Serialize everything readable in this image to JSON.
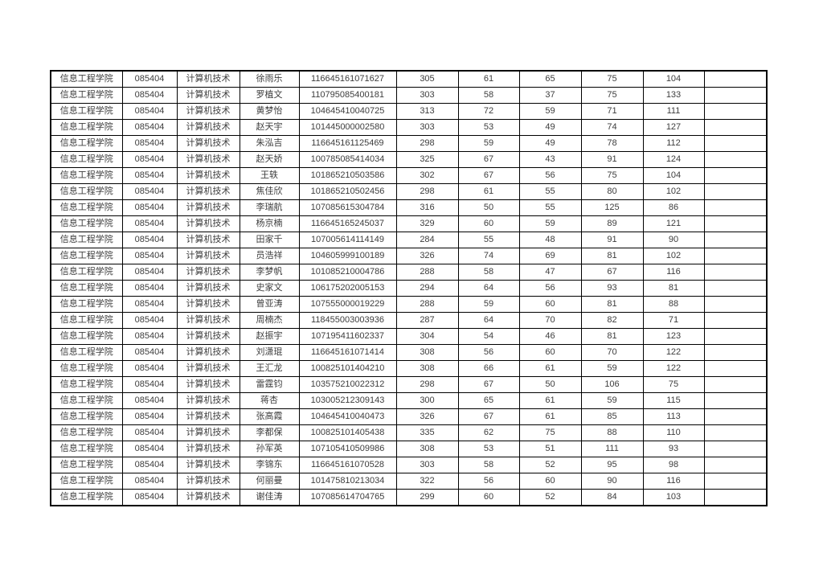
{
  "table": {
    "rows": [
      [
        "信息工程学院",
        "085404",
        "计算机技术",
        "徐雨乐",
        "116645161071627",
        "305",
        "61",
        "65",
        "75",
        "104",
        ""
      ],
      [
        "信息工程学院",
        "085404",
        "计算机技术",
        "罗植文",
        "110795085400181",
        "303",
        "58",
        "37",
        "75",
        "133",
        ""
      ],
      [
        "信息工程学院",
        "085404",
        "计算机技术",
        "黄梦怡",
        "104645410040725",
        "313",
        "72",
        "59",
        "71",
        "111",
        ""
      ],
      [
        "信息工程学院",
        "085404",
        "计算机技术",
        "赵天宇",
        "101445000002580",
        "303",
        "53",
        "49",
        "74",
        "127",
        ""
      ],
      [
        "信息工程学院",
        "085404",
        "计算机技术",
        "朱泓吉",
        "116645161125469",
        "298",
        "59",
        "49",
        "78",
        "112",
        ""
      ],
      [
        "信息工程学院",
        "085404",
        "计算机技术",
        "赵天娇",
        "100785085414034",
        "325",
        "67",
        "43",
        "91",
        "124",
        ""
      ],
      [
        "信息工程学院",
        "085404",
        "计算机技术",
        "王轶",
        "101865210503586",
        "302",
        "67",
        "56",
        "75",
        "104",
        ""
      ],
      [
        "信息工程学院",
        "085404",
        "计算机技术",
        "焦佳欣",
        "101865210502456",
        "298",
        "61",
        "55",
        "80",
        "102",
        ""
      ],
      [
        "信息工程学院",
        "085404",
        "计算机技术",
        "李瑞航",
        "107085615304784",
        "316",
        "50",
        "55",
        "125",
        "86",
        ""
      ],
      [
        "信息工程学院",
        "085404",
        "计算机技术",
        "杨京楠",
        "116645165245037",
        "329",
        "60",
        "59",
        "89",
        "121",
        ""
      ],
      [
        "信息工程学院",
        "085404",
        "计算机技术",
        "田家千",
        "107005614114149",
        "284",
        "55",
        "48",
        "91",
        "90",
        ""
      ],
      [
        "信息工程学院",
        "085404",
        "计算机技术",
        "员浩祥",
        "104605999100189",
        "326",
        "74",
        "69",
        "81",
        "102",
        ""
      ],
      [
        "信息工程学院",
        "085404",
        "计算机技术",
        "李梦帆",
        "101085210004786",
        "288",
        "58",
        "47",
        "67",
        "116",
        ""
      ],
      [
        "信息工程学院",
        "085404",
        "计算机技术",
        "史家文",
        "106175202005153",
        "294",
        "64",
        "56",
        "93",
        "81",
        ""
      ],
      [
        "信息工程学院",
        "085404",
        "计算机技术",
        "曾亚涛",
        "107555000019229",
        "288",
        "59",
        "60",
        "81",
        "88",
        ""
      ],
      [
        "信息工程学院",
        "085404",
        "计算机技术",
        "周楠杰",
        "118455003003936",
        "287",
        "64",
        "70",
        "82",
        "71",
        ""
      ],
      [
        "信息工程学院",
        "085404",
        "计算机技术",
        "赵振宇",
        "107195411602337",
        "304",
        "54",
        "46",
        "81",
        "123",
        ""
      ],
      [
        "信息工程学院",
        "085404",
        "计算机技术",
        "刘潇琨",
        "116645161071414",
        "308",
        "56",
        "60",
        "70",
        "122",
        ""
      ],
      [
        "信息工程学院",
        "085404",
        "计算机技术",
        "王汇龙",
        "100825101404210",
        "308",
        "66",
        "61",
        "59",
        "122",
        ""
      ],
      [
        "信息工程学院",
        "085404",
        "计算机技术",
        "雷霆钧",
        "103575210022312",
        "298",
        "67",
        "50",
        "106",
        "75",
        ""
      ],
      [
        "信息工程学院",
        "085404",
        "计算机技术",
        "蒋杏",
        "103005212309143",
        "300",
        "65",
        "61",
        "59",
        "115",
        ""
      ],
      [
        "信息工程学院",
        "085404",
        "计算机技术",
        "张高霞",
        "104645410040473",
        "326",
        "67",
        "61",
        "85",
        "113",
        ""
      ],
      [
        "信息工程学院",
        "085404",
        "计算机技术",
        "李都保",
        "100825101405438",
        "335",
        "62",
        "75",
        "88",
        "110",
        ""
      ],
      [
        "信息工程学院",
        "085404",
        "计算机技术",
        "孙军英",
        "107105410509986",
        "308",
        "53",
        "51",
        "111",
        "93",
        ""
      ],
      [
        "信息工程学院",
        "085404",
        "计算机技术",
        "李锦东",
        "116645161070528",
        "303",
        "58",
        "52",
        "95",
        "98",
        ""
      ],
      [
        "信息工程学院",
        "085404",
        "计算机技术",
        "何丽曼",
        "101475810213034",
        "322",
        "56",
        "60",
        "90",
        "116",
        ""
      ],
      [
        "信息工程学院",
        "085404",
        "计算机技术",
        "谢佳涛",
        "107085614704765",
        "299",
        "60",
        "52",
        "84",
        "103",
        ""
      ]
    ]
  }
}
